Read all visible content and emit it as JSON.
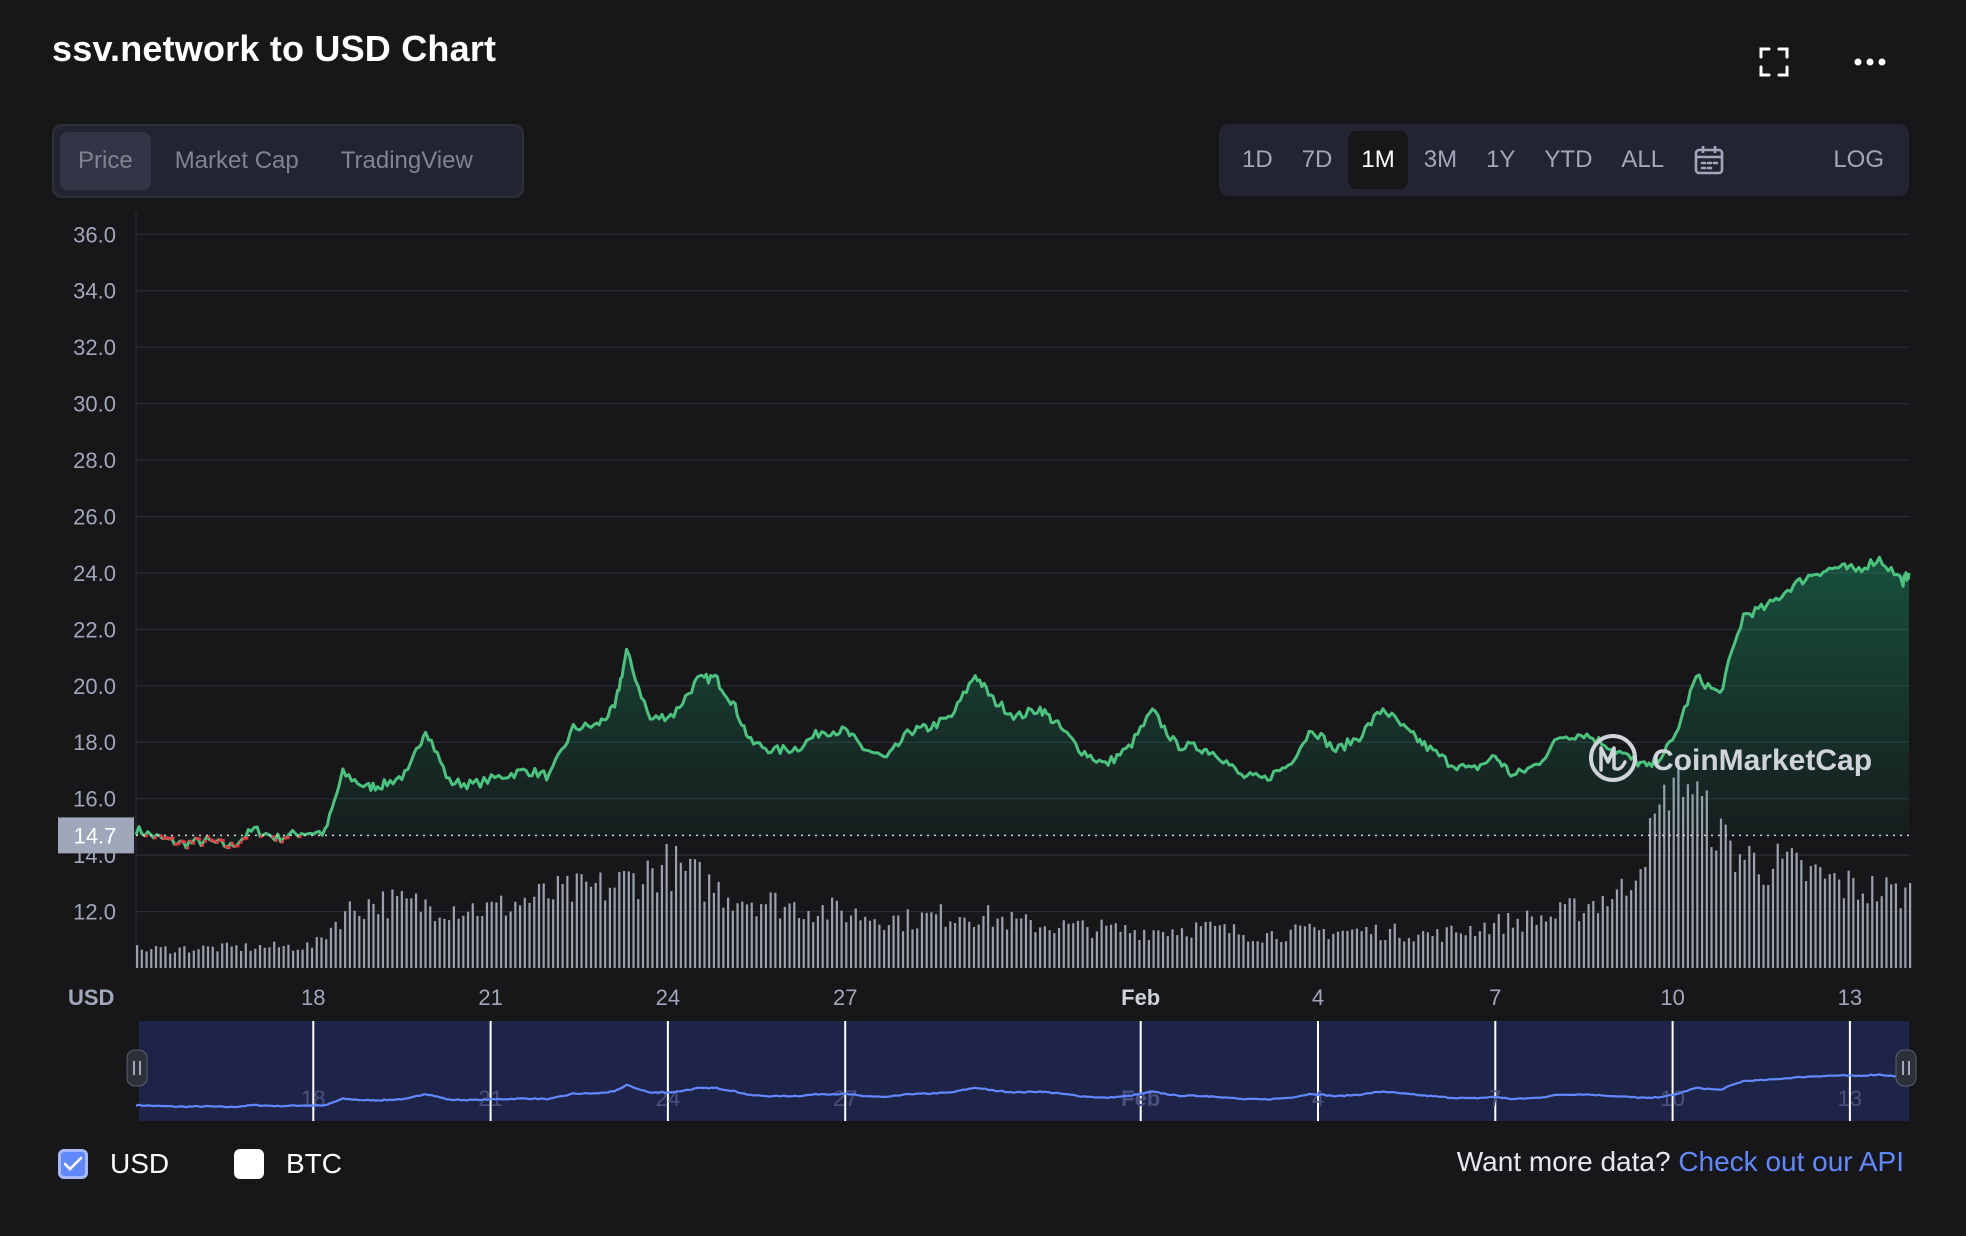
{
  "header": {
    "title": "ssv.network to USD Chart"
  },
  "tabs": [
    {
      "label": "Price",
      "active": true
    },
    {
      "label": "Market Cap",
      "active": false
    },
    {
      "label": "TradingView",
      "active": false
    }
  ],
  "ranges": [
    {
      "label": "1D"
    },
    {
      "label": "7D"
    },
    {
      "label": "1M",
      "active": true
    },
    {
      "label": "3M"
    },
    {
      "label": "1Y"
    },
    {
      "label": "YTD"
    },
    {
      "label": "ALL"
    }
  ],
  "log_label": "LOG",
  "icons": {
    "fullscreen": "fullscreen-icon",
    "more": "more-icon",
    "calendar": "calendar-icon"
  },
  "colors": {
    "up": "#16c784",
    "line": "#4bc37e",
    "down": "#ea3943",
    "nav_line": "#6188ff",
    "accent": "#6188ff"
  },
  "watermark": "CoinMarketCap",
  "footer": {
    "usd_label": "USD",
    "usd_checked": true,
    "btc_label": "BTC",
    "btc_checked": false,
    "api_prefix": "Want more data?",
    "api_link": "Check out our API"
  },
  "chart_data": {
    "type": "line",
    "currency_label": "USD",
    "y_ticks": [
      "36.0",
      "34.0",
      "32.0",
      "30.0",
      "28.0",
      "26.0",
      "24.0",
      "22.0",
      "20.0",
      "18.0",
      "16.0",
      "14.0",
      "12.0"
    ],
    "ylim": [
      10.0,
      36.4
    ],
    "x_ticks": [
      "18",
      "21",
      "24",
      "27",
      "Feb",
      "4",
      "7",
      "10",
      "13"
    ],
    "x_tick_days": [
      3,
      6,
      9,
      12,
      17,
      20,
      23,
      26,
      29
    ],
    "xlim_days": [
      0,
      30
    ],
    "current_price_label": "14.7",
    "reference_price": 14.7,
    "points": [
      [
        0.0,
        14.9
      ],
      [
        0.4,
        14.6
      ],
      [
        0.8,
        14.4
      ],
      [
        1.2,
        14.5
      ],
      [
        1.6,
        14.3
      ],
      [
        2.0,
        14.9
      ],
      [
        2.4,
        14.6
      ],
      [
        2.8,
        14.8
      ],
      [
        3.2,
        14.8
      ],
      [
        3.5,
        16.9
      ],
      [
        3.9,
        16.4
      ],
      [
        4.2,
        16.5
      ],
      [
        4.6,
        16.9
      ],
      [
        4.9,
        18.5
      ],
      [
        5.3,
        16.6
      ],
      [
        5.7,
        16.5
      ],
      [
        6.2,
        16.8
      ],
      [
        6.6,
        17.0
      ],
      [
        7.0,
        16.8
      ],
      [
        7.4,
        18.5
      ],
      [
        7.8,
        18.6
      ],
      [
        8.1,
        19.2
      ],
      [
        8.3,
        21.2
      ],
      [
        8.7,
        18.8
      ],
      [
        9.1,
        19.0
      ],
      [
        9.5,
        20.2
      ],
      [
        9.8,
        20.3
      ],
      [
        10.1,
        19.4
      ],
      [
        10.4,
        18.0
      ],
      [
        10.8,
        17.7
      ],
      [
        11.2,
        17.8
      ],
      [
        11.6,
        18.4
      ],
      [
        12.0,
        18.4
      ],
      [
        12.3,
        17.8
      ],
      [
        12.7,
        17.4
      ],
      [
        13.1,
        18.4
      ],
      [
        13.4,
        18.5
      ],
      [
        13.8,
        18.9
      ],
      [
        14.2,
        20.4
      ],
      [
        14.5,
        19.5
      ],
      [
        14.9,
        18.9
      ],
      [
        15.3,
        19.2
      ],
      [
        15.6,
        18.6
      ],
      [
        16.0,
        17.7
      ],
      [
        16.4,
        17.2
      ],
      [
        16.8,
        17.8
      ],
      [
        17.2,
        19.1
      ],
      [
        17.6,
        17.9
      ],
      [
        18.0,
        17.8
      ],
      [
        18.3,
        17.6
      ],
      [
        18.7,
        16.8
      ],
      [
        19.1,
        16.7
      ],
      [
        19.5,
        17.2
      ],
      [
        19.9,
        18.5
      ],
      [
        20.3,
        17.7
      ],
      [
        20.7,
        18.2
      ],
      [
        21.1,
        19.2
      ],
      [
        21.5,
        18.4
      ],
      [
        21.8,
        17.9
      ],
      [
        22.2,
        17.3
      ],
      [
        22.6,
        17.0
      ],
      [
        23.0,
        17.5
      ],
      [
        23.3,
        16.8
      ],
      [
        23.7,
        17.2
      ],
      [
        24.1,
        18.2
      ],
      [
        24.5,
        18.3
      ],
      [
        24.9,
        17.9
      ],
      [
        25.3,
        17.4
      ],
      [
        25.6,
        17.1
      ],
      [
        26.0,
        18.0
      ],
      [
        26.4,
        20.3
      ],
      [
        26.8,
        19.7
      ],
      [
        27.2,
        22.5
      ],
      [
        27.6,
        22.8
      ],
      [
        28.0,
        23.5
      ],
      [
        28.4,
        24.0
      ],
      [
        28.8,
        24.2
      ],
      [
        29.1,
        24.1
      ],
      [
        29.5,
        24.5
      ],
      [
        29.9,
        23.7
      ],
      [
        30.0,
        24.0
      ]
    ],
    "volume_profile": [
      [
        0,
        0.05
      ],
      [
        3,
        0.06
      ],
      [
        3.5,
        0.15
      ],
      [
        4,
        0.18
      ],
      [
        5,
        0.17
      ],
      [
        6,
        0.16
      ],
      [
        7,
        0.2
      ],
      [
        8,
        0.22
      ],
      [
        9,
        0.28
      ],
      [
        10,
        0.2
      ],
      [
        11,
        0.17
      ],
      [
        12,
        0.15
      ],
      [
        13,
        0.13
      ],
      [
        14,
        0.15
      ],
      [
        15,
        0.12
      ],
      [
        16,
        0.11
      ],
      [
        17,
        0.1
      ],
      [
        18,
        0.11
      ],
      [
        19,
        0.09
      ],
      [
        20,
        0.1
      ],
      [
        21,
        0.1
      ],
      [
        22,
        0.09
      ],
      [
        23,
        0.12
      ],
      [
        24,
        0.14
      ],
      [
        25,
        0.2
      ],
      [
        26,
        0.26
      ],
      [
        27,
        0.3
      ],
      [
        28,
        0.27
      ],
      [
        29,
        0.22
      ],
      [
        30,
        0.2
      ]
    ]
  }
}
